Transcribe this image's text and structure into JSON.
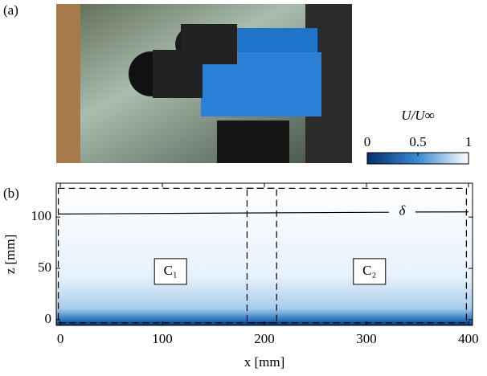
{
  "panel_a": {
    "label": "(a)"
  },
  "chart_data": {
    "type": "heatmap",
    "label": "(b)",
    "x_label": "x [mm]",
    "y_label": "z [mm]",
    "xlim": [
      -4,
      404
    ],
    "ylim": [
      -5.5,
      133
    ],
    "xticks": [
      0,
      100,
      200,
      300,
      400
    ],
    "yticks": [
      0,
      50,
      100
    ],
    "regions": [
      {
        "label": "C₁",
        "x": [
          -2,
          212
        ],
        "z": [
          -3,
          128
        ],
        "label_x": 108,
        "label_z": 47
      },
      {
        "label": "C₂",
        "x": [
          183,
          398
        ],
        "z": [
          -3,
          128
        ],
        "label_x": 303,
        "label_z": 47
      }
    ],
    "delta": {
      "label": "δ",
      "x": [
        -2,
        322,
        335,
        348,
        400
      ],
      "z": [
        103,
        104.7,
        null,
        104.9,
        105
      ],
      "label_x": 335,
      "label_z": 105
    },
    "colorbar": {
      "label": "U/U∞",
      "lim": [
        0,
        1
      ],
      "ticks": [
        0,
        0.5,
        1
      ],
      "colors": [
        "#062f6e",
        "#3a8ad0",
        "#ffffff"
      ]
    }
  }
}
